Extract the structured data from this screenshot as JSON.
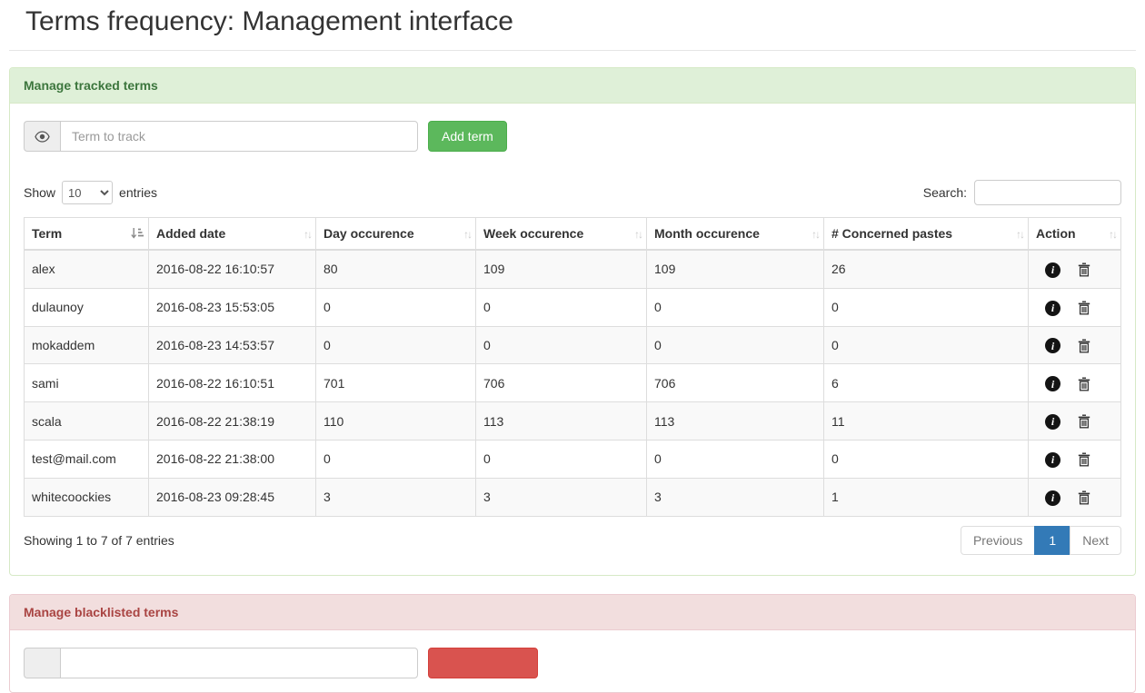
{
  "page": {
    "title": "Terms frequency: Management interface"
  },
  "colors": {
    "success_bg": "#dff0d8",
    "success_text": "#3c763d",
    "success_border": "#d6e9c6",
    "danger_bg": "#f2dede",
    "danger_text": "#a94442",
    "danger_border": "#ebccd1",
    "btn_success": "#5cb85c",
    "btn_danger": "#d9534f",
    "pagination_active": "#337ab7",
    "table_border": "#dddddd",
    "stripe": "#f9f9f9"
  },
  "icons": {
    "track_input_addon": "eye-icon",
    "term_sort": "sort-ascending-icon",
    "other_sort": "sort-both-icon",
    "row_actions": [
      "info-icon",
      "trash-icon"
    ]
  },
  "tracked_panel": {
    "heading": "Manage tracked terms",
    "input_placeholder": "Term to track",
    "add_button": "Add term",
    "show_label": "Show",
    "page_length": "10",
    "entries_label": "entries",
    "search_label": "Search:",
    "search_value": "",
    "table": {
      "columns": [
        "Term",
        "Added date",
        "Day occurence",
        "Week occurence",
        "Month occurence",
        "# Concerned pastes",
        "Action"
      ],
      "rows": [
        {
          "term": "alex",
          "added": "2016-08-22 16:10:57",
          "day": "80",
          "week": "109",
          "month": "109",
          "pastes": "26"
        },
        {
          "term": "dulaunoy",
          "added": "2016-08-23 15:53:05",
          "day": "0",
          "week": "0",
          "month": "0",
          "pastes": "0"
        },
        {
          "term": "mokaddem",
          "added": "2016-08-23 14:53:57",
          "day": "0",
          "week": "0",
          "month": "0",
          "pastes": "0"
        },
        {
          "term": "sami",
          "added": "2016-08-22 16:10:51",
          "day": "701",
          "week": "706",
          "month": "706",
          "pastes": "6"
        },
        {
          "term": "scala",
          "added": "2016-08-22 21:38:19",
          "day": "110",
          "week": "113",
          "month": "113",
          "pastes": "11"
        },
        {
          "term": "test@mail.com",
          "added": "2016-08-22 21:38:00",
          "day": "0",
          "week": "0",
          "month": "0",
          "pastes": "0"
        },
        {
          "term": "whitecoockies",
          "added": "2016-08-23 09:28:45",
          "day": "3",
          "week": "3",
          "month": "3",
          "pastes": "1"
        }
      ]
    },
    "info_text": "Showing 1 to 7 of 7 entries",
    "pagination": {
      "previous": "Previous",
      "current": "1",
      "next": "Next"
    }
  },
  "blacklist_panel": {
    "heading": "Manage blacklisted terms",
    "input_placeholder": "",
    "input_value": ""
  }
}
